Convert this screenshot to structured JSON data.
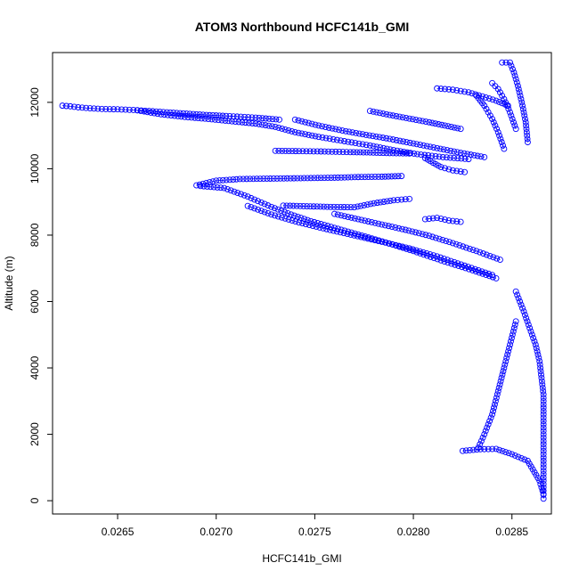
{
  "chart_data": {
    "type": "scatter",
    "title": "ATOM3 Northbound HCFC141b_GMI",
    "xlabel": "HCFC141b_GMI",
    "ylabel": "Altitude (m)",
    "xlim": [
      0.02617,
      0.0287
    ],
    "ylim": [
      -400,
      13500
    ],
    "x_ticks": [
      0.0265,
      0.027,
      0.0275,
      0.028,
      0.0285
    ],
    "x_tick_labels": [
      "0.0265",
      "0.0270",
      "0.0275",
      "0.0280",
      "0.0285"
    ],
    "y_ticks": [
      0,
      2000,
      4000,
      6000,
      8000,
      10000,
      12000
    ],
    "y_tick_labels": [
      "0",
      "2000",
      "4000",
      "6000",
      "8000",
      "10000",
      "12000"
    ],
    "grid": false,
    "marker": "open-circle",
    "color": "#0000ff",
    "series": [
      {
        "values": [
          [
            0.02622,
            11900
          ],
          [
            0.02626,
            11880
          ],
          [
            0.0263,
            11850
          ],
          [
            0.02636,
            11820
          ],
          [
            0.02642,
            11800
          ],
          [
            0.0265,
            11790
          ],
          [
            0.02658,
            11770
          ],
          [
            0.02666,
            11740
          ],
          [
            0.02675,
            11700
          ],
          [
            0.02685,
            11660
          ],
          [
            0.02695,
            11620
          ],
          [
            0.02705,
            11590
          ],
          [
            0.0272,
            11540
          ],
          [
            0.02732,
            11480
          ]
        ]
      },
      {
        "values": [
          [
            0.0266,
            11760
          ],
          [
            0.02672,
            11640
          ],
          [
            0.02684,
            11560
          ],
          [
            0.02696,
            11500
          ],
          [
            0.02708,
            11430
          ],
          [
            0.0272,
            11360
          ],
          [
            0.0273,
            11260
          ],
          [
            0.0274,
            11100
          ],
          [
            0.02752,
            10960
          ],
          [
            0.02765,
            10830
          ],
          [
            0.02778,
            10700
          ],
          [
            0.0279,
            10560
          ],
          [
            0.02802,
            10440
          ],
          [
            0.02815,
            10350
          ],
          [
            0.02828,
            10290
          ]
        ]
      },
      {
        "values": [
          [
            0.0274,
            11480
          ],
          [
            0.02752,
            11300
          ],
          [
            0.02764,
            11150
          ],
          [
            0.02776,
            11020
          ],
          [
            0.02788,
            10900
          ],
          [
            0.028,
            10760
          ],
          [
            0.02812,
            10620
          ],
          [
            0.02824,
            10480
          ],
          [
            0.02836,
            10350
          ]
        ]
      },
      {
        "values": [
          [
            0.02778,
            11740
          ],
          [
            0.02788,
            11620
          ],
          [
            0.02798,
            11510
          ],
          [
            0.02808,
            11400
          ],
          [
            0.02816,
            11300
          ],
          [
            0.02824,
            11200
          ]
        ]
      },
      {
        "values": [
          [
            0.02812,
            12420
          ],
          [
            0.0282,
            12380
          ],
          [
            0.02828,
            12300
          ],
          [
            0.02835,
            12180
          ],
          [
            0.02842,
            12050
          ],
          [
            0.02848,
            11900
          ]
        ]
      },
      {
        "values": [
          [
            0.0273,
            10540
          ],
          [
            0.02742,
            10530
          ],
          [
            0.02755,
            10520
          ],
          [
            0.02768,
            10500
          ],
          [
            0.02778,
            10490
          ],
          [
            0.02788,
            10470
          ],
          [
            0.02798,
            10460
          ]
        ]
      },
      {
        "values": [
          [
            0.02806,
            10320
          ],
          [
            0.0281,
            10180
          ],
          [
            0.02814,
            10050
          ],
          [
            0.0282,
            9950
          ],
          [
            0.02826,
            9900
          ]
        ]
      },
      {
        "values": [
          [
            0.02692,
            9480
          ],
          [
            0.02704,
            9420
          ],
          [
            0.02716,
            9160
          ],
          [
            0.02728,
            8850
          ],
          [
            0.02738,
            8620
          ],
          [
            0.02748,
            8420
          ],
          [
            0.0276,
            8220
          ],
          [
            0.02772,
            8020
          ],
          [
            0.02786,
            7780
          ],
          [
            0.028,
            7520
          ],
          [
            0.02814,
            7240
          ],
          [
            0.0283,
            6940
          ],
          [
            0.02842,
            6700
          ]
        ]
      },
      {
        "values": [
          [
            0.0269,
            9500
          ],
          [
            0.027,
            9640
          ],
          [
            0.02712,
            9690
          ],
          [
            0.02724,
            9700
          ],
          [
            0.02736,
            9710
          ],
          [
            0.02748,
            9720
          ],
          [
            0.0276,
            9730
          ],
          [
            0.02772,
            9750
          ],
          [
            0.02784,
            9760
          ],
          [
            0.02794,
            9780
          ]
        ]
      },
      {
        "values": [
          [
            0.02716,
            8880
          ],
          [
            0.02728,
            8620
          ],
          [
            0.02742,
            8380
          ],
          [
            0.02756,
            8180
          ],
          [
            0.0277,
            7990
          ],
          [
            0.02784,
            7800
          ],
          [
            0.02798,
            7600
          ],
          [
            0.02812,
            7360
          ],
          [
            0.02826,
            7080
          ],
          [
            0.0284,
            6800
          ]
        ]
      },
      {
        "values": [
          [
            0.02734,
            8890
          ],
          [
            0.02746,
            8870
          ],
          [
            0.02758,
            8850
          ],
          [
            0.0277,
            8840
          ],
          [
            0.0278,
            8960
          ],
          [
            0.0279,
            9050
          ],
          [
            0.02798,
            9090
          ]
        ]
      },
      {
        "values": [
          [
            0.0276,
            8640
          ],
          [
            0.02772,
            8480
          ],
          [
            0.02784,
            8320
          ],
          [
            0.02796,
            8160
          ],
          [
            0.02808,
            7980
          ],
          [
            0.0282,
            7760
          ],
          [
            0.02832,
            7520
          ],
          [
            0.02844,
            7260
          ]
        ]
      },
      {
        "values": [
          [
            0.02806,
            8480
          ],
          [
            0.02812,
            8520
          ],
          [
            0.02818,
            8440
          ],
          [
            0.02824,
            8400
          ]
        ]
      },
      {
        "values": [
          [
            0.02845,
            13200
          ],
          [
            0.02849,
            13200
          ],
          [
            0.02851,
            12900
          ],
          [
            0.02853,
            12500
          ],
          [
            0.02855,
            12000
          ],
          [
            0.02857,
            11400
          ],
          [
            0.02858,
            10800
          ]
        ]
      },
      {
        "values": [
          [
            0.0284,
            12580
          ],
          [
            0.02843,
            12400
          ],
          [
            0.02846,
            12100
          ],
          [
            0.02849,
            11700
          ],
          [
            0.02852,
            11200
          ]
        ]
      },
      {
        "values": [
          [
            0.02832,
            12200
          ],
          [
            0.02836,
            11900
          ],
          [
            0.0284,
            11500
          ],
          [
            0.02843,
            11100
          ],
          [
            0.02846,
            10600
          ]
        ]
      },
      {
        "values": [
          [
            0.02833,
            1600
          ],
          [
            0.02836,
            2000
          ],
          [
            0.0284,
            2600
          ],
          [
            0.02843,
            3300
          ],
          [
            0.02846,
            4000
          ],
          [
            0.02849,
            4700
          ],
          [
            0.02852,
            5400
          ]
        ]
      },
      {
        "values": [
          [
            0.02825,
            1500
          ],
          [
            0.02834,
            1550
          ],
          [
            0.02842,
            1560
          ],
          [
            0.0285,
            1400
          ],
          [
            0.02858,
            1200
          ],
          [
            0.02864,
            600
          ],
          [
            0.02866,
            200
          ]
        ]
      },
      {
        "values": [
          [
            0.02866,
            60
          ],
          [
            0.02866,
            300
          ],
          [
            0.02866,
            700
          ],
          [
            0.02866,
            1200
          ],
          [
            0.02866,
            1700
          ],
          [
            0.02866,
            2200
          ],
          [
            0.02866,
            2700
          ],
          [
            0.02866,
            3200
          ],
          [
            0.02865,
            3700
          ],
          [
            0.02864,
            4200
          ],
          [
            0.02862,
            4700
          ],
          [
            0.02859,
            5200
          ],
          [
            0.02856,
            5700
          ],
          [
            0.02852,
            6300
          ]
        ]
      }
    ]
  }
}
